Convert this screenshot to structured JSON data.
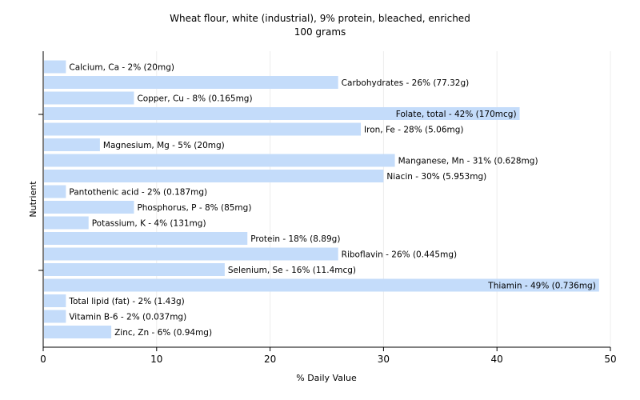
{
  "chart_data": {
    "type": "bar",
    "orientation": "horizontal",
    "title": "Wheat flour, white (industrial), 9% protein, bleached, enriched",
    "subtitle": "100 grams",
    "xlabel": "% Daily Value",
    "ylabel": "Nutrient",
    "xlim": [
      0,
      50
    ],
    "xticks": [
      0,
      10,
      20,
      30,
      40,
      50
    ],
    "grid": true,
    "bar_color": "#c4dcfa",
    "categories": [
      "Calcium, Ca",
      "Carbohydrates",
      "Copper, Cu",
      "Folate, total",
      "Iron, Fe",
      "Magnesium, Mg",
      "Manganese, Mn",
      "Niacin",
      "Pantothenic acid",
      "Phosphorus, P",
      "Potassium, K",
      "Protein",
      "Riboflavin",
      "Selenium, Se",
      "Thiamin",
      "Total lipid (fat)",
      "Vitamin B-6",
      "Zinc, Zn"
    ],
    "values": [
      2,
      26,
      8,
      42,
      28,
      5,
      31,
      30,
      2,
      8,
      4,
      18,
      26,
      16,
      49,
      2,
      2,
      6
    ],
    "labels": [
      "Calcium, Ca - 2% (20mg)",
      "Carbohydrates - 26% (77.32g)",
      "Copper, Cu - 8% (0.165mg)",
      "Folate, total - 42% (170mcg)",
      "Iron, Fe - 28% (5.06mg)",
      "Magnesium, Mg - 5% (20mg)",
      "Manganese, Mn - 31% (0.628mg)",
      "Niacin - 30% (5.953mg)",
      "Pantothenic acid - 2% (0.187mg)",
      "Phosphorus, P - 8% (85mg)",
      "Potassium, K - 4% (131mg)",
      "Protein - 18% (8.89g)",
      "Riboflavin - 26% (0.445mg)",
      "Selenium, Se - 16% (11.4mcg)",
      "Thiamin - 49% (0.736mg)",
      "Total lipid (fat) - 2% (1.43g)",
      "Vitamin B-6 - 2% (0.037mg)",
      "Zinc, Zn - 6% (0.94mg)"
    ]
  }
}
